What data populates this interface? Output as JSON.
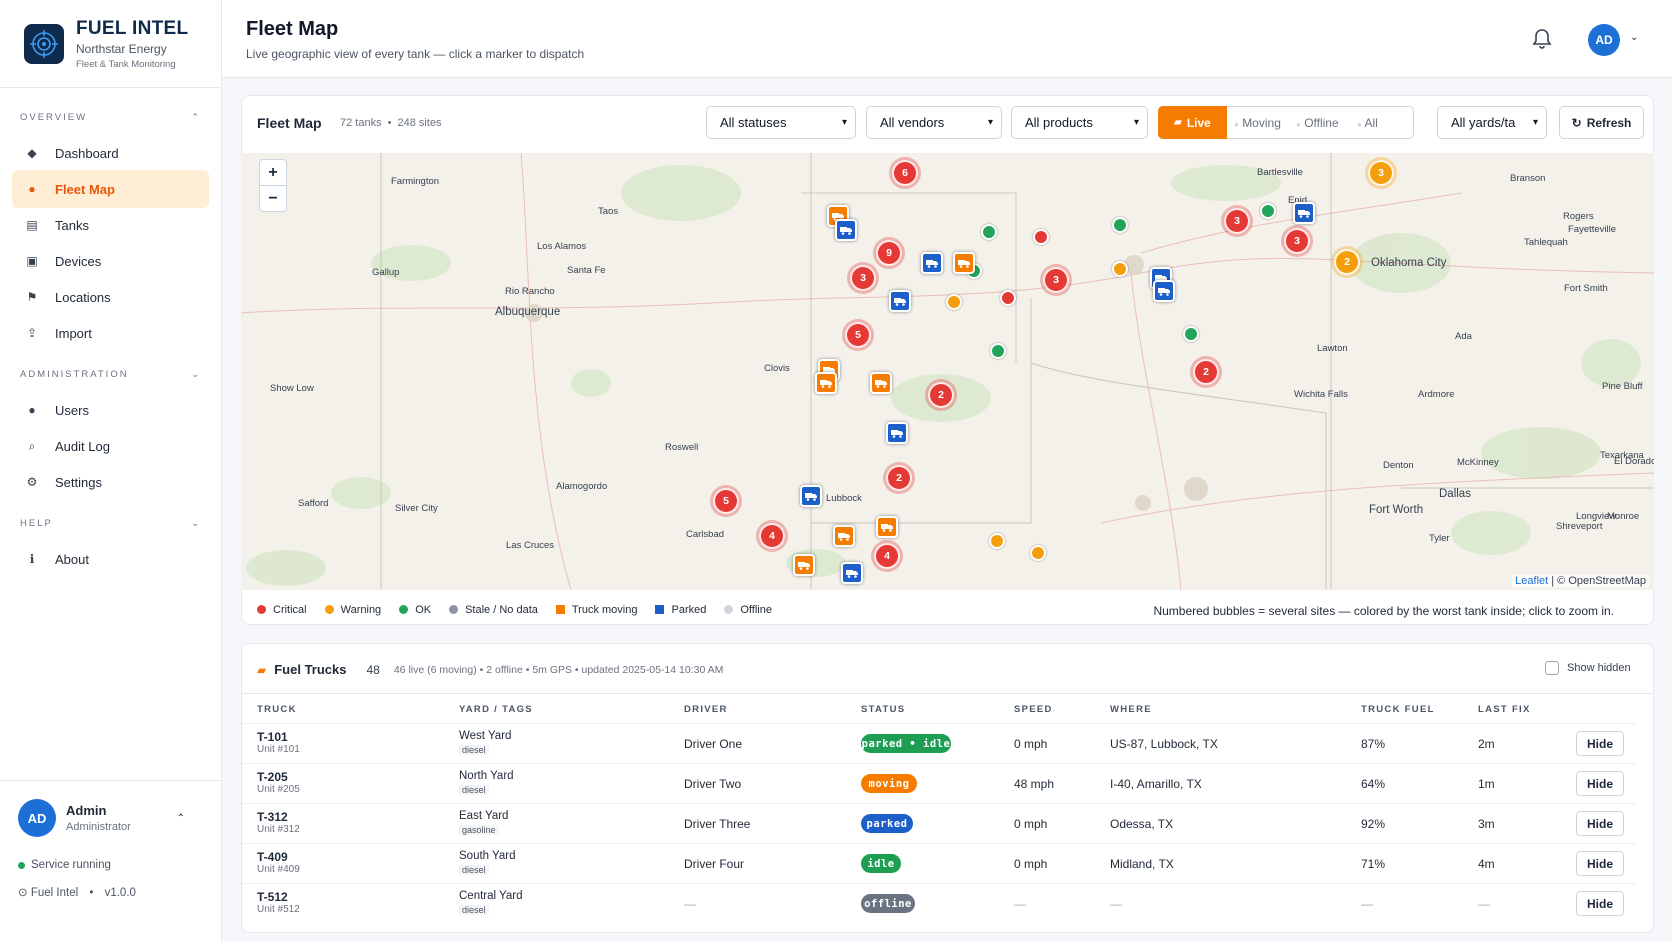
{
  "brand": {
    "title": "FUEL INTEL",
    "company": "Northstar Energy",
    "tagline": "Fleet & Tank Monitoring"
  },
  "sidebar": {
    "sections": [
      {
        "label": "OVERVIEW",
        "items": [
          {
            "label": "Dashboard",
            "icon": "dashboard-icon"
          },
          {
            "label": "Fleet Map",
            "icon": "map-pin-icon",
            "active": true
          },
          {
            "label": "Tanks",
            "icon": "tank-icon"
          },
          {
            "label": "Devices",
            "icon": "device-icon"
          },
          {
            "label": "Locations",
            "icon": "flag-icon"
          },
          {
            "label": "Import",
            "icon": "import-icon"
          }
        ]
      },
      {
        "label": "ADMINISTRATION",
        "items": [
          {
            "label": "Users",
            "icon": "user-icon"
          },
          {
            "label": "Audit Log",
            "icon": "search-icon"
          },
          {
            "label": "Settings",
            "icon": "gear-icon"
          }
        ]
      },
      {
        "label": "HELP",
        "items": [
          {
            "label": "About",
            "icon": "info-icon"
          }
        ]
      }
    ]
  },
  "user": {
    "initials": "AD",
    "name": "Admin",
    "role": "Administrator",
    "service_status": "Service running",
    "app_name": "Fuel Intel",
    "version": "v1.0.0"
  },
  "header": {
    "title": "Fleet Map",
    "subtitle": "Live geographic view of every tank — click a marker to dispatch",
    "avatar_initials": "AD"
  },
  "map_card": {
    "title": "Fleet Map",
    "tank_count": "72 tanks",
    "site_count": "248 sites",
    "filters": {
      "status": "All statuses",
      "vendor": "All vendors",
      "product": "All products",
      "yard": "All yards/ta"
    },
    "modes": [
      "Live",
      "Moving",
      "Offline",
      "All"
    ],
    "active_mode": "Live",
    "refresh_label": "Refresh",
    "attribution_leaflet": "Leaflet",
    "attribution_osm": "| © OpenStreetMap",
    "zoom_in": "+",
    "zoom_out": "−",
    "legend": [
      {
        "label": "Critical",
        "color": "#e53935",
        "shape": "dot"
      },
      {
        "label": "Warning",
        "color": "#f59e0b",
        "shape": "dot"
      },
      {
        "label": "OK",
        "color": "#22a55a",
        "shape": "dot"
      },
      {
        "label": "Stale / No data",
        "color": "#8b95a7",
        "shape": "dot"
      },
      {
        "label": "Truck moving",
        "color": "#f57c00",
        "shape": "square"
      },
      {
        "label": "Parked",
        "color": "#1d5fc9",
        "shape": "square"
      },
      {
        "label": "Offline",
        "color": "#d1d5db",
        "shape": "dot"
      }
    ],
    "legend_note": "Numbered bubbles = several sites — colored by the worst tank inside; click to zoom in."
  },
  "map_labels": [
    "Farmington",
    "Taos",
    "Los Alamos",
    "Santa Fe",
    "Gallup",
    "Rio Rancho",
    "Albuquerque",
    "Clovis",
    "Show Low",
    "Roswell",
    "Alamogordo",
    "Safford",
    "Silver City",
    "Las Cruces",
    "Carlsbad",
    "Lubbock",
    "Bartlesville",
    "Enid",
    "Oklahoma City",
    "Branson",
    "Rogers",
    "Fayetteville",
    "Tahlequah",
    "Fort Smith",
    "Lawton",
    "Ada",
    "Ardmore",
    "Wichita Falls",
    "Denton",
    "McKinney",
    "Dallas",
    "Fort Worth",
    "Texarkana",
    "El Dorado",
    "Pine Bluff",
    "Longview",
    "Tyler",
    "Shreveport",
    "Monroe"
  ],
  "trucks_card": {
    "title": "Fuel Trucks",
    "count": "48",
    "summary": "46 live (6 moving) • 2 offline • 5m GPS • updated 2025-05-14 10:30 AM",
    "show_hidden_label": "Show hidden",
    "columns": [
      "TRUCK",
      "YARD / TAGS",
      "DRIVER",
      "STATUS",
      "SPEED",
      "WHERE",
      "TRUCK FUEL",
      "LAST FIX"
    ],
    "rows": [
      {
        "truck": "T-101",
        "unit": "Unit #101",
        "yard": "West Yard",
        "tag": "diesel",
        "driver": "Driver One",
        "status": "parked • idle",
        "status_color": "#1e9e52",
        "speed": "0 mph",
        "where": "US-87, Lubbock, TX",
        "fuel": "87%",
        "last_fix": "2m",
        "action": "Hide"
      },
      {
        "truck": "T-205",
        "unit": "Unit #205",
        "yard": "North Yard",
        "tag": "diesel",
        "driver": "Driver Two",
        "status": "moving",
        "status_color": "#f57c00",
        "speed": "48 mph",
        "where": "I-40, Amarillo, TX",
        "fuel": "64%",
        "last_fix": "1m",
        "action": "Hide"
      },
      {
        "truck": "T-312",
        "unit": "Unit #312",
        "yard": "East Yard",
        "tag": "gasoline",
        "driver": "Driver Three",
        "status": "parked",
        "status_color": "#1d5fc9",
        "speed": "0 mph",
        "where": "Odessa, TX",
        "fuel": "92%",
        "last_fix": "3m",
        "action": "Hide"
      },
      {
        "truck": "T-409",
        "unit": "Unit #409",
        "yard": "South Yard",
        "tag": "diesel",
        "driver": "Driver Four",
        "status": "idle",
        "status_color": "#1e9e52",
        "speed": "0 mph",
        "where": "Midland, TX",
        "fuel": "71%",
        "last_fix": "4m",
        "action": "Hide"
      },
      {
        "truck": "T-512",
        "unit": "Unit #512",
        "yard": "Central Yard",
        "tag": "diesel",
        "driver": "—",
        "status": "offline",
        "status_color": "#6b7280",
        "speed": "—",
        "where": "—",
        "fuel": "—",
        "last_fix": "—",
        "action": "Hide"
      }
    ]
  }
}
